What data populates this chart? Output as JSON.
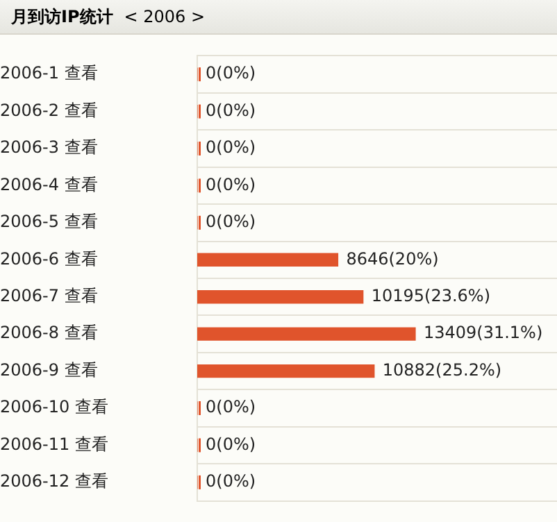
{
  "chart_data": {
    "type": "bar",
    "orientation": "horizontal",
    "title": "月到访IP统计",
    "subtitle": "< 2006 >",
    "categories": [
      "2006-1 查看",
      "2006-2 查看",
      "2006-3 查看",
      "2006-4 查看",
      "2006-5 查看",
      "2006-6 查看",
      "2006-7 查看",
      "2006-8 查看",
      "2006-9 查看",
      "2006-10 查看",
      "2006-11 查看",
      "2006-12 查看"
    ],
    "values": [
      0,
      0,
      0,
      0,
      0,
      8646,
      10195,
      13409,
      10882,
      0,
      0,
      0
    ],
    "value_labels": [
      "0(0%)",
      "0(0%)",
      "0(0%)",
      "0(0%)",
      "0(0%)",
      "8646(20%)",
      "10195(23.6%)",
      "13409(31.1%)",
      "10882(25.2%)",
      "0(0%)",
      "0(0%)",
      "0(0%)"
    ],
    "color": "#e0542c",
    "grid": "y",
    "legend": false,
    "tick_labels": "y"
  }
}
